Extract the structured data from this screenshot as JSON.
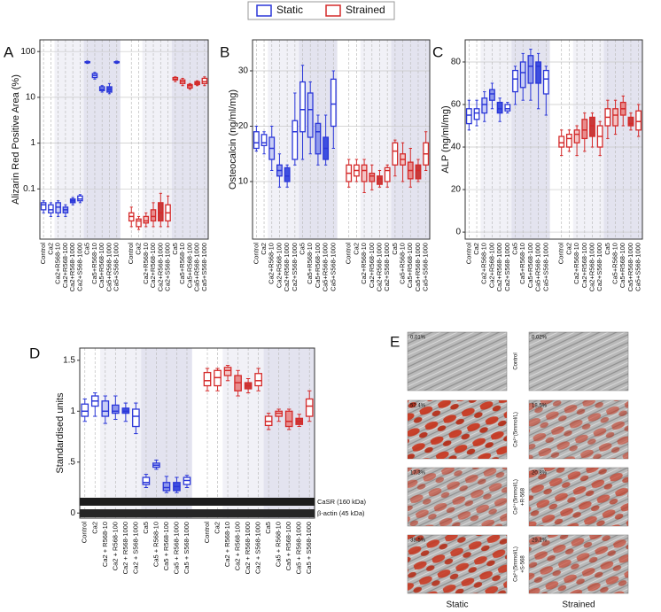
{
  "legend": [
    {
      "name": "Static",
      "color": "#2a36d8"
    },
    {
      "name": "Strained",
      "color": "#d42a2a"
    }
  ],
  "chart_data": [
    {
      "type": "box",
      "panel_label": "A",
      "y_label": "Alizarin Red Positive Area (%)",
      "log_scale": true,
      "grid": true,
      "categories": [
        "Control",
        "Ca2",
        "Ca2+R568-10",
        "Ca2+R568-100",
        "Ca2+R568-1000",
        "Ca2+S568-1000",
        "Ca5",
        "Ca5+R568-10",
        "Ca5+R568-100",
        "Ca5+R568-1000",
        "Ca5+S568-1000"
      ],
      "ylim": [
        0.008,
        180
      ],
      "yticks": [
        0.1,
        1,
        10,
        100
      ],
      "series": [
        {
          "fills": [
            "#ffffff",
            "#ffffff",
            "#c8cdf5",
            "#8f99ec",
            "#3e4fe0",
            "#ffffff",
            "#ffffff",
            "#c8cdf5",
            "#8f99ec",
            "#3e4fe0",
            "#ffffff"
          ],
          "low": [
            0.03,
            0.025,
            0.025,
            0.025,
            0.045,
            0.05,
            55,
            25,
            13,
            12,
            55
          ],
          "q1": [
            0.035,
            0.03,
            0.03,
            0.03,
            0.05,
            0.055,
            57,
            27,
            14,
            13,
            57
          ],
          "median": [
            0.045,
            0.035,
            0.04,
            0.035,
            0.055,
            0.06,
            58,
            30,
            15,
            15,
            58
          ],
          "q3": [
            0.05,
            0.045,
            0.05,
            0.04,
            0.06,
            0.07,
            60,
            33,
            17,
            17,
            60
          ],
          "high": [
            0.055,
            0.05,
            0.055,
            0.045,
            0.065,
            0.075,
            62,
            35,
            18,
            20,
            62
          ]
        },
        {
          "fills": [
            "#ffffff",
            "#ffffff",
            "#f3c4c4",
            "#e88d8d",
            "#c83a3a",
            "#ffffff",
            "#ffffff",
            "#f3c4c4",
            "#e88d8d",
            "#c83a3a",
            "#ffffff"
          ],
          "low": [
            0.015,
            0.013,
            0.015,
            0.015,
            0.015,
            0.015,
            22,
            18,
            15,
            18,
            18
          ],
          "q1": [
            0.02,
            0.015,
            0.018,
            0.02,
            0.02,
            0.02,
            24,
            20,
            16,
            19,
            20
          ],
          "median": [
            0.025,
            0.02,
            0.02,
            0.025,
            0.03,
            0.03,
            25,
            22,
            18,
            20,
            22
          ],
          "q3": [
            0.03,
            0.022,
            0.025,
            0.035,
            0.05,
            0.045,
            27,
            24,
            19,
            22,
            26
          ],
          "high": [
            0.04,
            0.025,
            0.03,
            0.05,
            0.08,
            0.07,
            28,
            26,
            20,
            23,
            28
          ]
        }
      ]
    },
    {
      "type": "box",
      "panel_label": "B",
      "y_label": "Osteocalcin (ng/ml/mg)",
      "log_scale": false,
      "grid": true,
      "categories": [
        "Control",
        "Ca2",
        "Ca2+R568-10",
        "Ca2+R568-100",
        "Ca2+R568-1000",
        "Ca2+S568-1000",
        "Ca5",
        "Ca5+R568-10",
        "Ca5+R568-100",
        "Ca5+R568-1000",
        "Ca5+S568-1000"
      ],
      "ylim": [
        -0.4,
        35.6
      ],
      "yticks": [
        10,
        20,
        30
      ],
      "series": [
        {
          "fills": [
            "#ffffff",
            "#ffffff",
            "#c8cdf5",
            "#8f99ec",
            "#3e4fe0",
            "#ffffff",
            "#ffffff",
            "#c8cdf5",
            "#8f99ec",
            "#3e4fe0",
            "#ffffff"
          ],
          "low": [
            15.5,
            15,
            12,
            9,
            9,
            13,
            14,
            15,
            13,
            13,
            16
          ],
          "q1": [
            16,
            16.5,
            14,
            11,
            10,
            14,
            19,
            18,
            15,
            14,
            20
          ],
          "median": [
            17,
            17,
            16,
            12,
            11,
            19,
            23,
            23,
            19,
            16,
            24
          ],
          "q3": [
            19,
            18.5,
            18,
            13,
            12.5,
            21,
            28,
            26,
            20.5,
            18,
            28.5
          ],
          "high": [
            20,
            19,
            20,
            15,
            13,
            26,
            31,
            28,
            22,
            22,
            30
          ]
        },
        {
          "fills": [
            "#ffffff",
            "#ffffff",
            "#f3c4c4",
            "#e88d8d",
            "#c83a3a",
            "#ffffff",
            "#ffffff",
            "#f3c4c4",
            "#e88d8d",
            "#c83a3a",
            "#ffffff"
          ],
          "low": [
            9,
            10,
            8,
            8.5,
            9,
            9,
            11,
            10,
            9,
            10,
            12
          ],
          "q1": [
            10,
            11,
            10,
            10,
            9.5,
            10,
            13,
            13,
            10.5,
            10.5,
            13
          ],
          "median": [
            11.5,
            12,
            12,
            11,
            10.5,
            12,
            15.5,
            14,
            12,
            12,
            15
          ],
          "q3": [
            13,
            13,
            13,
            11.5,
            11,
            12.5,
            17,
            15,
            13.5,
            13,
            17
          ],
          "high": [
            14,
            14,
            14,
            13,
            12,
            13,
            17.5,
            17,
            16,
            14,
            19
          ]
        }
      ]
    },
    {
      "type": "box",
      "panel_label": "C",
      "y_label": "ALP (ng/ml/mg)",
      "log_scale": false,
      "grid": true,
      "categories": [
        "Control",
        "Ca2",
        "Ca2+R568-10",
        "Ca2+R568-100",
        "Ca2+R568-1000",
        "Ca2+S568-1000",
        "Ca5",
        "Ca5+R568-10",
        "Ca5+R568-100",
        "Ca5+R568-1000",
        "Ca5+S568-1000"
      ],
      "ylim": [
        -3.3,
        90.4
      ],
      "yticks": [
        0,
        20,
        40,
        60,
        80
      ],
      "series": [
        {
          "fills": [
            "#ffffff",
            "#ffffff",
            "#c8cdf5",
            "#8f99ec",
            "#3e4fe0",
            "#ffffff",
            "#ffffff",
            "#c8cdf5",
            "#8f99ec",
            "#3e4fe0",
            "#ffffff"
          ],
          "low": [
            48,
            50,
            52,
            58,
            52,
            56,
            60,
            62,
            62,
            58,
            55
          ],
          "q1": [
            51,
            53,
            56,
            62,
            56,
            57,
            66,
            68,
            70,
            70,
            65
          ],
          "median": [
            55,
            56,
            60,
            65,
            58,
            58,
            72,
            75,
            78,
            78,
            72
          ],
          "q3": [
            58,
            58,
            63,
            67,
            61,
            60,
            76,
            80,
            83,
            80,
            76
          ],
          "high": [
            62,
            62,
            66,
            70,
            63,
            61,
            78,
            84,
            86,
            84,
            78
          ]
        },
        {
          "fills": [
            "#ffffff",
            "#ffffff",
            "#f3c4c4",
            "#e88d8d",
            "#c83a3a",
            "#ffffff",
            "#ffffff",
            "#f3c4c4",
            "#e88d8d",
            "#c83a3a",
            "#ffffff"
          ],
          "low": [
            36,
            38,
            36,
            38,
            40,
            36,
            44,
            46,
            50,
            48,
            45
          ],
          "q1": [
            40,
            40,
            42,
            44,
            45,
            40,
            50,
            50,
            55,
            50,
            48
          ],
          "median": [
            42,
            44,
            46,
            48,
            50,
            45,
            54,
            55,
            58,
            51,
            52
          ],
          "q3": [
            45,
            46,
            48,
            53,
            54,
            50,
            58,
            58,
            61,
            54,
            57
          ],
          "high": [
            48,
            48,
            50,
            56,
            56,
            52,
            62,
            62,
            64,
            56,
            60
          ]
        }
      ]
    },
    {
      "type": "box",
      "panel_label": "D",
      "y_label": "Standardised units",
      "log_scale": false,
      "grid": false,
      "blot_labels": [
        "CaSR (160 kDa)",
        "β-actin (45 kDa)"
      ],
      "categories": [
        "Control",
        "Ca2",
        "Ca2 + R568-10",
        "Ca2 + R568-100",
        "Ca2 + R568-1000",
        "Ca2 + S568-1000",
        "Ca5",
        "Ca5 + R568-10",
        "Ca5 + R568-100",
        "Ca5 + R568-1000",
        "Ca5 + S568-1000"
      ],
      "ylim": [
        -0.05,
        1.62
      ],
      "yticks": [
        0,
        {
          "value": 0.5,
          "label": ".5"
        },
        1,
        1.5
      ],
      "series": [
        {
          "fills": [
            "#ffffff",
            "#ffffff",
            "#c8cdf5",
            "#8f99ec",
            "#3e4fe0",
            "#ffffff",
            "#ffffff",
            "#c8cdf5",
            "#8f99ec",
            "#3e4fe0",
            "#ffffff"
          ],
          "low": [
            0.9,
            0.95,
            0.88,
            0.92,
            0.9,
            0.78,
            0.25,
            0.43,
            0.2,
            0.2,
            0.25
          ],
          "q1": [
            0.95,
            1.05,
            0.95,
            0.98,
            0.98,
            0.85,
            0.28,
            0.45,
            0.22,
            0.22,
            0.28
          ],
          "median": [
            1,
            1.1,
            1,
            1,
            1,
            0.95,
            0.3,
            0.47,
            0.25,
            0.26,
            0.32
          ],
          "q3": [
            1.07,
            1.15,
            1.1,
            1.06,
            1.03,
            1.02,
            0.35,
            0.49,
            0.3,
            0.3,
            0.35
          ],
          "high": [
            1.12,
            1.18,
            1.15,
            1.15,
            1.08,
            1.08,
            0.38,
            0.52,
            0.36,
            0.35,
            0.37
          ]
        },
        {
          "fills": [
            "#ffffff",
            "#ffffff",
            "#f3c4c4",
            "#e88d8d",
            "#c83a3a",
            "#ffffff",
            "#ffffff",
            "#f3c4c4",
            "#e88d8d",
            "#c83a3a",
            "#ffffff"
          ],
          "low": [
            1.2,
            1.2,
            1.3,
            1.15,
            1.18,
            1.2,
            0.82,
            0.9,
            0.82,
            0.85,
            0.9
          ],
          "q1": [
            1.25,
            1.25,
            1.35,
            1.2,
            1.22,
            1.25,
            0.86,
            0.95,
            0.85,
            0.87,
            0.95
          ],
          "median": [
            1.3,
            1.33,
            1.4,
            1.28,
            1.25,
            1.3,
            0.9,
            0.98,
            0.9,
            0.9,
            1.05
          ],
          "q3": [
            1.38,
            1.4,
            1.43,
            1.35,
            1.28,
            1.37,
            0.95,
            1,
            1,
            0.93,
            1.12
          ],
          "high": [
            1.42,
            1.42,
            1.45,
            1.4,
            1.32,
            1.42,
            0.98,
            1.02,
            1.02,
            0.97,
            1.2
          ]
        }
      ]
    }
  ],
  "image_panel": {
    "panel_label": "E",
    "columns": [
      "Static",
      "Strained"
    ],
    "rows": [
      {
        "label_lines": [
          "Control"
        ],
        "percents": [
          "0.01%",
          "0.02%"
        ]
      },
      {
        "label_lines": [
          "Ca²⁺(5mmol/L)"
        ],
        "percents": [
          "52.4%",
          "18.5%"
        ]
      },
      {
        "label_lines": [
          "Ca²⁺(5mmol/L)",
          "+R-568"
        ],
        "percents": [
          "17.3%",
          "20.8%"
        ]
      },
      {
        "label_lines": [
          "Ca²⁺(5mmol/L)",
          "+S-568"
        ],
        "percents": [
          "38.5%",
          "29.1%"
        ]
      }
    ]
  }
}
